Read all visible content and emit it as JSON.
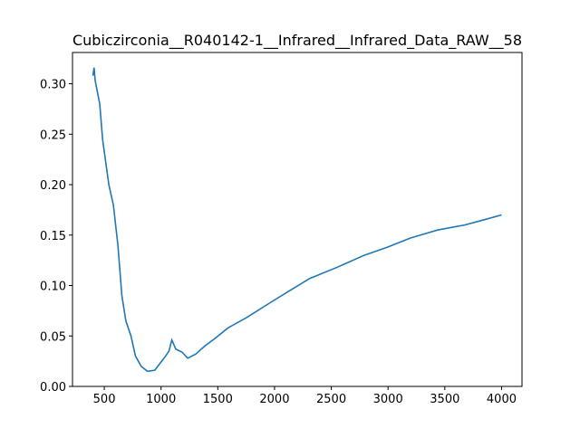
{
  "chart_data": {
    "type": "line",
    "title": "Cubiczirconia__R040142-1__Infrared__Infrared_Data_RAW__58",
    "x": [
      400,
      410,
      420,
      460,
      485,
      540,
      580,
      620,
      655,
      690,
      735,
      775,
      825,
      880,
      945,
      985,
      1040,
      1070,
      1095,
      1130,
      1185,
      1235,
      1305,
      1385,
      1480,
      1590,
      1750,
      1990,
      2150,
      2310,
      2550,
      2790,
      2995,
      3195,
      3435,
      3675,
      3840,
      4000
    ],
    "series": [
      {
        "name": "Infrared",
        "color": "#1f77b4",
        "values": [
          0.308,
          0.316,
          0.303,
          0.28,
          0.245,
          0.2,
          0.18,
          0.14,
          0.09,
          0.065,
          0.05,
          0.03,
          0.02,
          0.015,
          0.016,
          0.022,
          0.03,
          0.035,
          0.046,
          0.037,
          0.034,
          0.028,
          0.032,
          0.04,
          0.048,
          0.058,
          0.068,
          0.085,
          0.096,
          0.107,
          0.118,
          0.13,
          0.138,
          0.147,
          0.155,
          0.16,
          0.165,
          0.17
        ]
      }
    ],
    "xlim": [
      220,
      4180
    ],
    "ylim": [
      0,
      0.331
    ],
    "xticks": [
      500,
      1000,
      1500,
      2000,
      2500,
      3000,
      3500,
      4000
    ],
    "yticks": [
      {
        "value": 0,
        "label": "0.00"
      },
      {
        "value": 0.05,
        "label": "0.05"
      },
      {
        "value": 0.1,
        "label": "0.10"
      },
      {
        "value": 0.15,
        "label": "0.15"
      },
      {
        "value": 0.2,
        "label": "0.20"
      },
      {
        "value": 0.25,
        "label": "0.25"
      },
      {
        "value": 0.3,
        "label": "0.30"
      }
    ]
  }
}
